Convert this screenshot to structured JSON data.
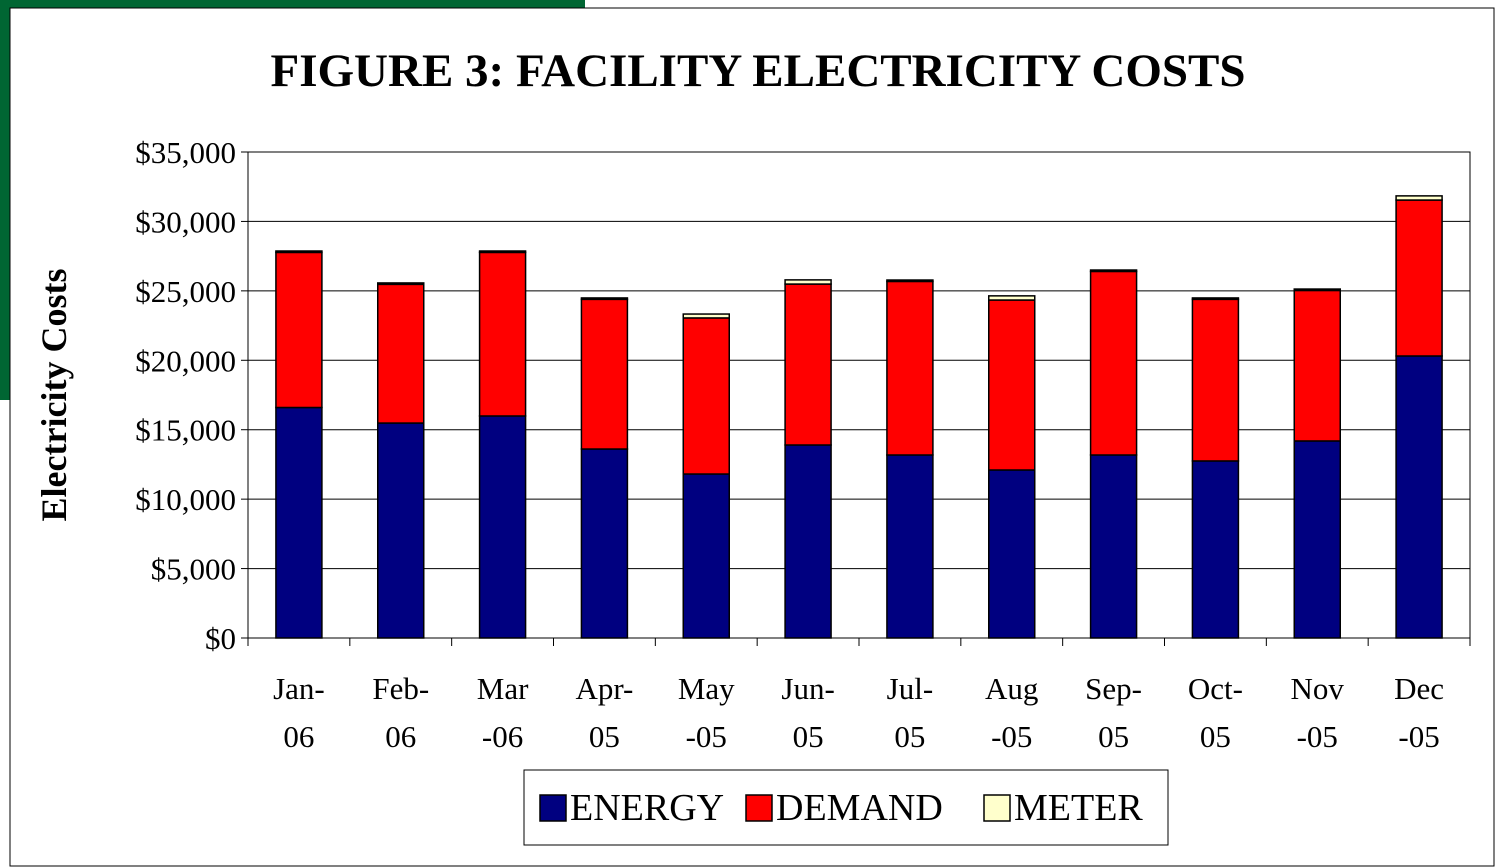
{
  "chart_data": {
    "type": "stacked_bar",
    "title": "FIGURE 3: FACILITY ELECTRICITY COSTS",
    "y_label": "Electricity Costs",
    "categories": [
      "Jan-06",
      "Feb-06",
      "Mar-06",
      "Apr-05",
      "May-05",
      "Jun-05",
      "Jul-05",
      "Aug-05",
      "Sep-05",
      "Oct-05",
      "Nov-05",
      "Dec-05"
    ],
    "series": [
      {
        "name": "ENERGY",
        "color": "#000080",
        "values": [
          16600,
          15480,
          15990,
          13610,
          11810,
          13900,
          13180,
          12100,
          13180,
          12750,
          14190,
          20310
        ]
      },
      {
        "name": "DEMAND",
        "color": "#ff0000",
        "values": [
          11170,
          9990,
          11780,
          10780,
          11240,
          11590,
          12500,
          12240,
          13220,
          11640,
          10840,
          11230
        ]
      },
      {
        "name": "METER",
        "color": "#ffffcc",
        "values": [
          100,
          100,
          100,
          100,
          280,
          300,
          100,
          300,
          100,
          100,
          100,
          300
        ]
      }
    ],
    "ylim": [
      0,
      35000
    ],
    "yticks": [
      {
        "value": 0,
        "label": "$0"
      },
      {
        "value": 5000,
        "label": "$5,000"
      },
      {
        "value": 10000,
        "label": "$10,000"
      },
      {
        "value": 15000,
        "label": "$15,000"
      },
      {
        "value": 20000,
        "label": "$20,000"
      },
      {
        "value": 25000,
        "label": "$25,000"
      },
      {
        "value": 30000,
        "label": "$30,000"
      },
      {
        "value": 35000,
        "label": "$35,000"
      }
    ],
    "grid": true,
    "legend": "bottom"
  }
}
